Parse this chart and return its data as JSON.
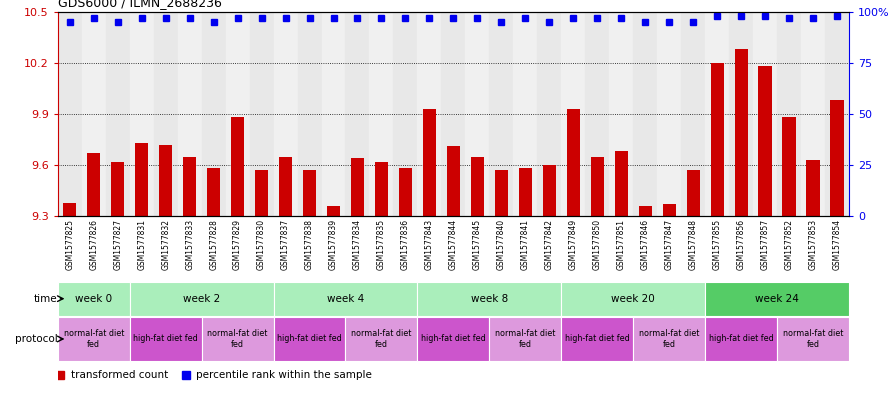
{
  "title": "GDS6000 / ILMN_2688236",
  "samples": [
    "GSM1577825",
    "GSM1577826",
    "GSM1577827",
    "GSM1577831",
    "GSM1577832",
    "GSM1577833",
    "GSM1577828",
    "GSM1577829",
    "GSM1577830",
    "GSM1577837",
    "GSM1577838",
    "GSM1577839",
    "GSM1577834",
    "GSM1577835",
    "GSM1577836",
    "GSM1577843",
    "GSM1577844",
    "GSM1577845",
    "GSM1577840",
    "GSM1577841",
    "GSM1577842",
    "GSM1577849",
    "GSM1577850",
    "GSM1577851",
    "GSM1577846",
    "GSM1577847",
    "GSM1577848",
    "GSM1577855",
    "GSM1577856",
    "GSM1577857",
    "GSM1577852",
    "GSM1577853",
    "GSM1577854"
  ],
  "bar_values": [
    9.38,
    9.67,
    9.62,
    9.73,
    9.72,
    9.65,
    9.58,
    9.88,
    9.57,
    9.65,
    9.57,
    9.36,
    9.64,
    9.62,
    9.58,
    9.93,
    9.71,
    9.65,
    9.57,
    9.58,
    9.6,
    9.93,
    9.65,
    9.68,
    9.36,
    9.37,
    9.57,
    10.2,
    10.28,
    10.18,
    9.88,
    9.63,
    9.98
  ],
  "percentile_values": [
    95,
    97,
    95,
    97,
    97,
    97,
    95,
    97,
    97,
    97,
    97,
    97,
    97,
    97,
    97,
    97,
    97,
    97,
    95,
    97,
    95,
    97,
    97,
    97,
    95,
    95,
    95,
    98,
    98,
    98,
    97,
    97,
    98
  ],
  "bar_color": "#cc0000",
  "dot_color": "#0000ee",
  "ylim_left": [
    9.3,
    10.5
  ],
  "ylim_right": [
    0,
    100
  ],
  "yticks_left": [
    9.3,
    9.6,
    9.9,
    10.2,
    10.5
  ],
  "yticks_right": [
    0,
    25,
    50,
    75,
    100
  ],
  "ytick_labels_right": [
    "0",
    "25",
    "50",
    "75",
    "100%"
  ],
  "bg_colors": [
    "#e8e8e8",
    "#f0f0f0"
  ],
  "time_groups": [
    {
      "label": "week 0",
      "start": 0,
      "end": 3,
      "color": "#aaeebb"
    },
    {
      "label": "week 2",
      "start": 3,
      "end": 9,
      "color": "#aaeebb"
    },
    {
      "label": "week 4",
      "start": 9,
      "end": 15,
      "color": "#aaeebb"
    },
    {
      "label": "week 8",
      "start": 15,
      "end": 21,
      "color": "#aaeebb"
    },
    {
      "label": "week 20",
      "start": 21,
      "end": 27,
      "color": "#aaeebb"
    },
    {
      "label": "week 24",
      "start": 27,
      "end": 33,
      "color": "#55cc66"
    }
  ],
  "protocol_groups": [
    {
      "label": "normal-fat diet\nfed",
      "start": 0,
      "end": 3,
      "color": "#dd99dd"
    },
    {
      "label": "high-fat diet fed",
      "start": 3,
      "end": 6,
      "color": "#cc55cc"
    },
    {
      "label": "normal-fat diet\nfed",
      "start": 6,
      "end": 9,
      "color": "#dd99dd"
    },
    {
      "label": "high-fat diet fed",
      "start": 9,
      "end": 12,
      "color": "#cc55cc"
    },
    {
      "label": "normal-fat diet\nfed",
      "start": 12,
      "end": 15,
      "color": "#dd99dd"
    },
    {
      "label": "high-fat diet fed",
      "start": 15,
      "end": 18,
      "color": "#cc55cc"
    },
    {
      "label": "normal-fat diet\nfed",
      "start": 18,
      "end": 21,
      "color": "#dd99dd"
    },
    {
      "label": "high-fat diet fed",
      "start": 21,
      "end": 24,
      "color": "#cc55cc"
    },
    {
      "label": "normal-fat diet\nfed",
      "start": 24,
      "end": 27,
      "color": "#dd99dd"
    },
    {
      "label": "high-fat diet fed",
      "start": 27,
      "end": 30,
      "color": "#cc55cc"
    },
    {
      "label": "normal-fat diet\nfed",
      "start": 30,
      "end": 33,
      "color": "#dd99dd"
    }
  ],
  "legend_items": [
    {
      "label": "transformed count",
      "color": "#cc0000"
    },
    {
      "label": "percentile rank within the sample",
      "color": "#0000ee"
    }
  ]
}
